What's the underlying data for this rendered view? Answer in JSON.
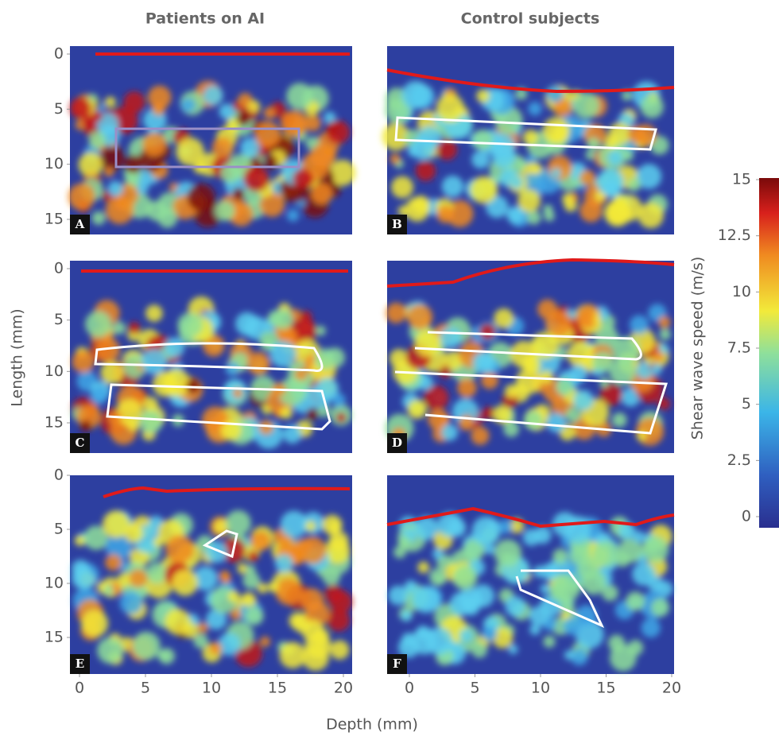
{
  "column_titles": [
    "Patients on AI",
    "Control subjects"
  ],
  "panels": [
    {
      "label": "A"
    },
    {
      "label": "B"
    },
    {
      "label": "C"
    },
    {
      "label": "D"
    },
    {
      "label": "E"
    },
    {
      "label": "F"
    }
  ],
  "y_axis": {
    "label": "Length (mm)",
    "ticks": [
      0,
      5,
      10,
      15
    ]
  },
  "x_axis": {
    "label": "Depth (mm)",
    "ticks": [
      0,
      5,
      10,
      15,
      20
    ]
  },
  "colorbar": {
    "label": "Shear wave speed (m/s)",
    "ticks": [
      0,
      2.5,
      5,
      7.5,
      10,
      12.5,
      15
    ],
    "lim": [
      0,
      15
    ]
  }
}
